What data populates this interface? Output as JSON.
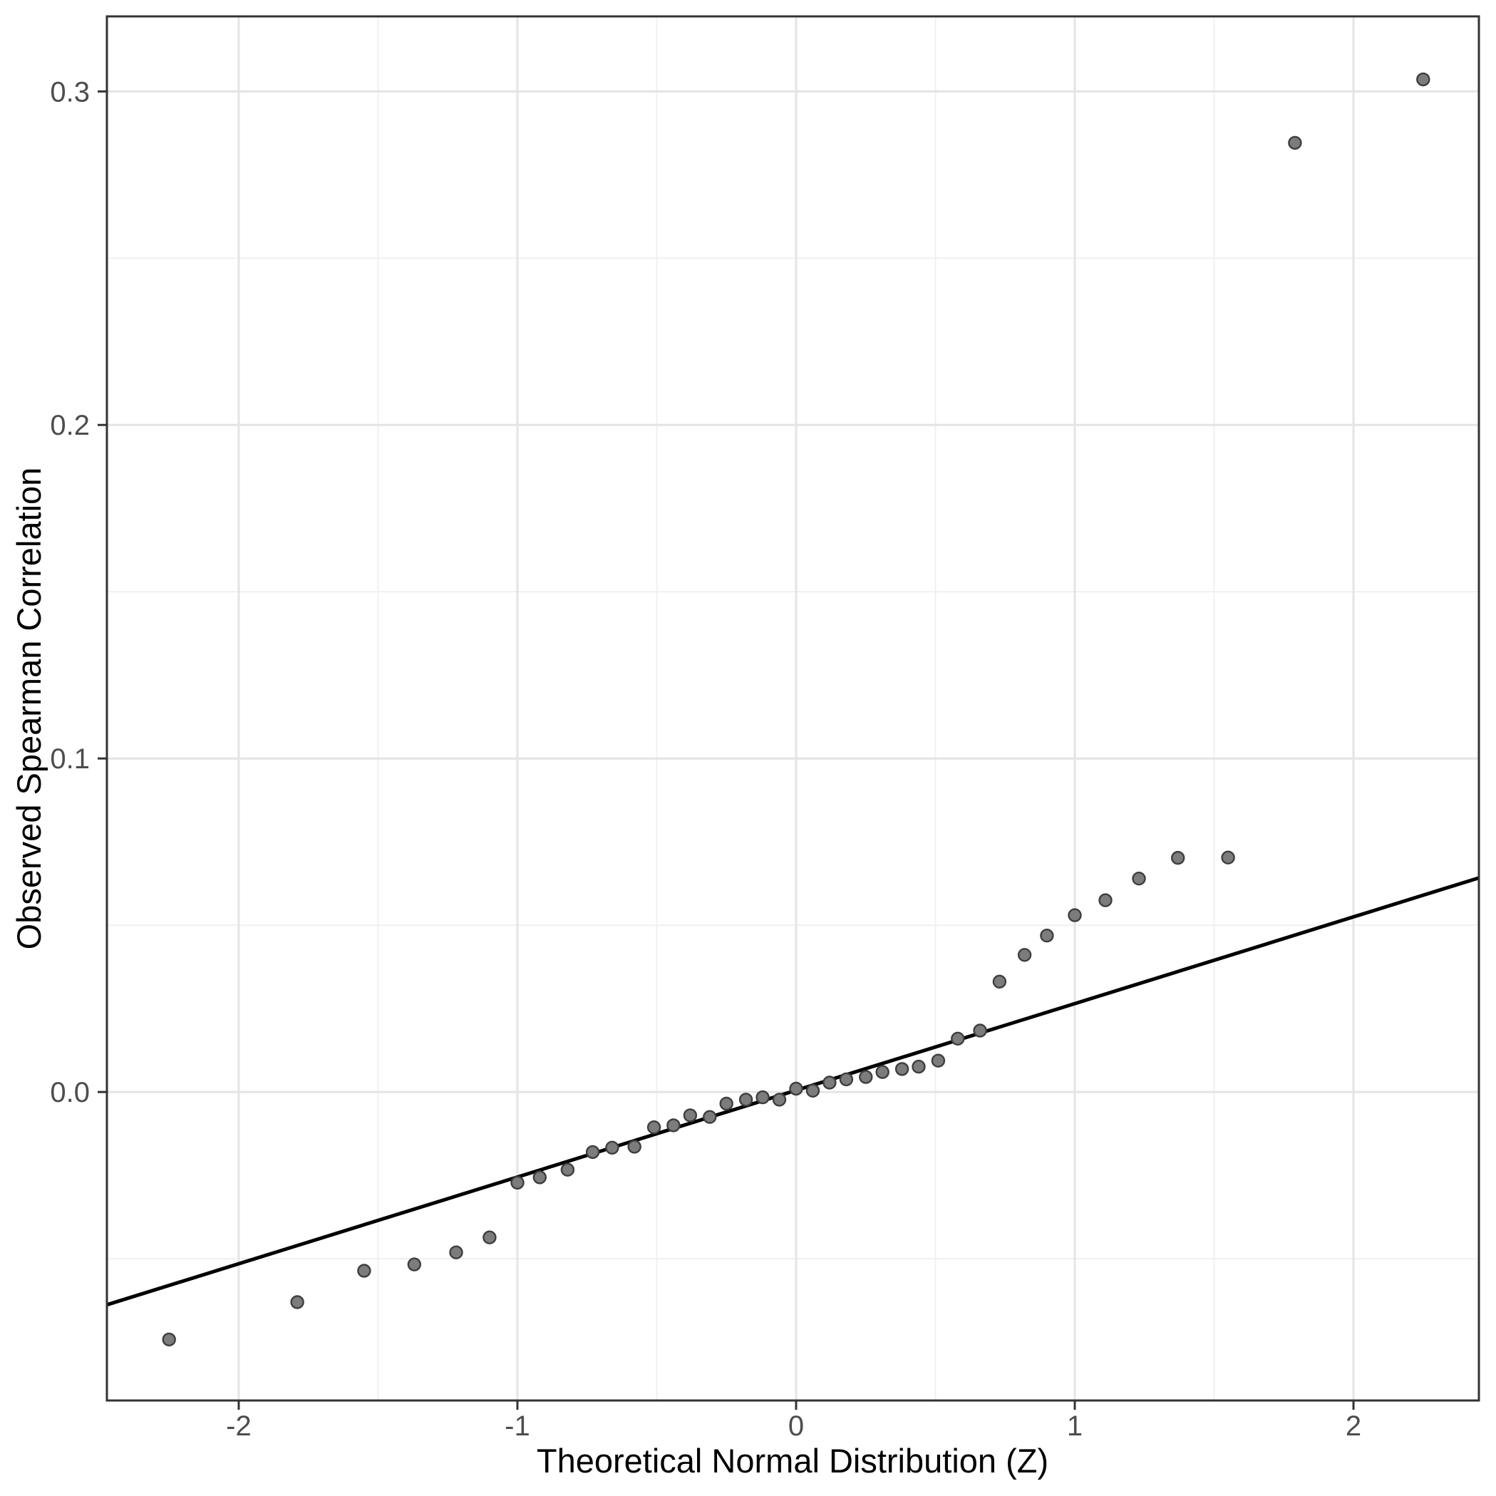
{
  "chart_data": {
    "type": "scatter",
    "title": "",
    "xlabel": "Theoretical Normal Distribution (Z)",
    "ylabel": "Observed Spearman Correlation",
    "legend": "none",
    "grid": "major+minor",
    "x_ticks": {
      "values": [
        -2,
        -1,
        0,
        1,
        2
      ],
      "labels": [
        "-2",
        "-1",
        "0",
        "1",
        "2"
      ]
    },
    "y_ticks": {
      "values": [
        0.0,
        0.1,
        0.2,
        0.3
      ],
      "labels": [
        "0.0",
        "0.1",
        "0.2",
        "0.3"
      ]
    },
    "x_minor": [
      -1.5,
      -0.5,
      0.5,
      1.5
    ],
    "y_minor": [
      -0.05,
      0.05,
      0.15,
      0.25
    ],
    "xlim": [
      -2.473,
      2.45
    ],
    "ylim": [
      -0.0925,
      0.3225
    ],
    "ref_line": {
      "slope": 0.026,
      "intercept": 0.0005
    },
    "series_name": "observed-vs-theoretical-quantiles",
    "points": [
      [
        -2.25,
        -0.0742
      ],
      [
        -1.79,
        -0.063
      ],
      [
        -1.55,
        -0.0536
      ],
      [
        -1.37,
        -0.0517
      ],
      [
        -1.22,
        -0.0481
      ],
      [
        -1.1,
        -0.0436
      ],
      [
        -1.0,
        -0.0272
      ],
      [
        -0.92,
        -0.0256
      ],
      [
        -0.82,
        -0.0233
      ],
      [
        -0.73,
        -0.018
      ],
      [
        -0.66,
        -0.0167
      ],
      [
        -0.58,
        -0.0164
      ],
      [
        -0.51,
        -0.0106
      ],
      [
        -0.44,
        -0.01
      ],
      [
        -0.38,
        -0.007
      ],
      [
        -0.31,
        -0.0075
      ],
      [
        -0.25,
        -0.0035
      ],
      [
        -0.18,
        -0.0023
      ],
      [
        -0.12,
        -0.0016
      ],
      [
        -0.06,
        -0.0023
      ],
      [
        0.0,
        0.001
      ],
      [
        0.06,
        0.0004
      ],
      [
        0.12,
        0.0028
      ],
      [
        0.18,
        0.0038
      ],
      [
        0.25,
        0.0045
      ],
      [
        0.31,
        0.006
      ],
      [
        0.38,
        0.0069
      ],
      [
        0.44,
        0.0076
      ],
      [
        0.51,
        0.0094
      ],
      [
        0.58,
        0.016
      ],
      [
        0.66,
        0.0184
      ],
      [
        0.73,
        0.0331
      ],
      [
        0.82,
        0.0411
      ],
      [
        0.9,
        0.0469
      ],
      [
        1.0,
        0.053
      ],
      [
        1.11,
        0.0575
      ],
      [
        1.23,
        0.064
      ],
      [
        1.37,
        0.0702
      ],
      [
        1.55,
        0.0703
      ],
      [
        1.79,
        0.2846
      ],
      [
        2.25,
        0.3036
      ]
    ],
    "style": {
      "background": "#ffffff",
      "panel_background": "#ffffff",
      "panel_border": "#333333",
      "grid_major": "#e4e4e4",
      "grid_minor": "#f0f0f0",
      "point_fill": "#7c7c7c",
      "point_stroke": "#3e3e3e",
      "ref_line_color": "#000000",
      "tick_color": "#333333",
      "tick_label_color": "#4d4d4d",
      "axis_title_color": "#000000"
    }
  }
}
